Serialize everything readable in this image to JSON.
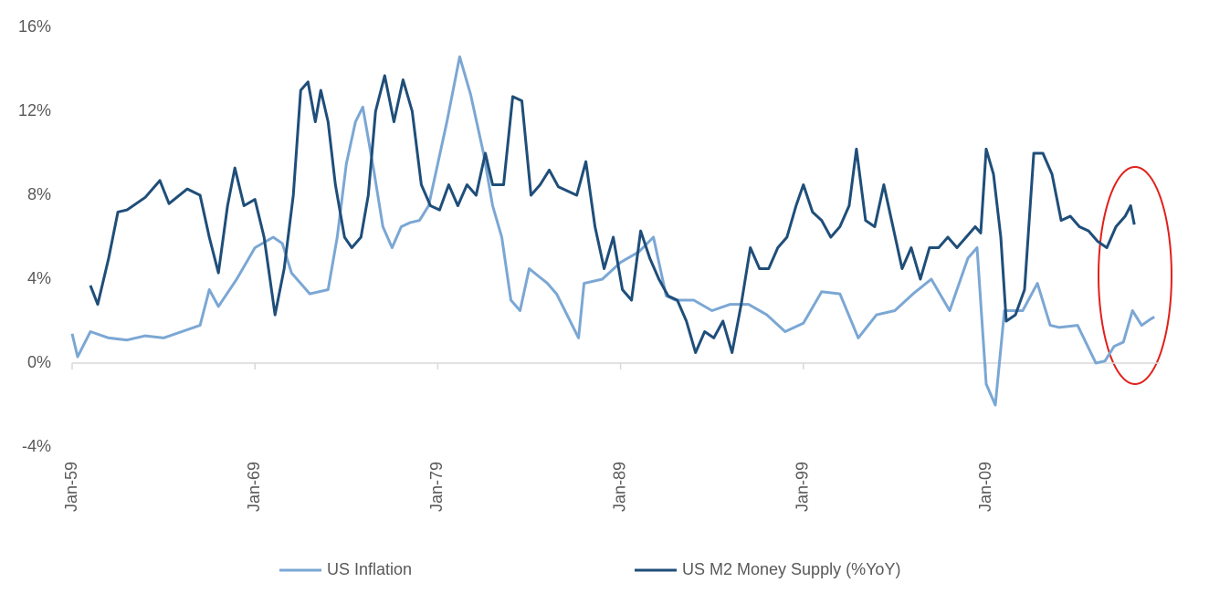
{
  "chart_data": {
    "type": "line",
    "xlim": [
      1959,
      2018.5
    ],
    "xticks": [
      {
        "value": 1959,
        "label": "Jan-59"
      },
      {
        "value": 1969,
        "label": "Jan-69"
      },
      {
        "value": 1979,
        "label": "Jan-79"
      },
      {
        "value": 1989,
        "label": "Jan-89"
      },
      {
        "value": 1999,
        "label": "Jan-99"
      },
      {
        "value": 2009,
        "label": "Jan-09"
      }
    ],
    "ylim": [
      -4,
      16
    ],
    "yticks": [
      {
        "value": -4,
        "label": "-4%"
      },
      {
        "value": 0,
        "label": "0%"
      },
      {
        "value": 4,
        "label": "4%"
      },
      {
        "value": 8,
        "label": "8%"
      },
      {
        "value": 12,
        "label": "12%"
      },
      {
        "value": 16,
        "label": "16%"
      }
    ],
    "grid": false,
    "legend": "bottom",
    "series": [
      {
        "name": "US Inflation",
        "color": "#7ba7d4",
        "x": [
          1959.0,
          1959.3,
          1960.0,
          1961.0,
          1962.0,
          1963.0,
          1964.0,
          1965.0,
          1966.0,
          1966.5,
          1967.0,
          1968.0,
          1969.0,
          1970.0,
          1970.5,
          1971.0,
          1972.0,
          1973.0,
          1973.5,
          1974.0,
          1974.5,
          1974.9,
          1975.5,
          1976.0,
          1976.5,
          1977.0,
          1977.5,
          1978.0,
          1978.5,
          1979.0,
          1979.5,
          1980.2,
          1980.8,
          1981.5,
          1982.0,
          1982.5,
          1983.0,
          1983.5,
          1984.0,
          1985.0,
          1985.5,
          1986.7,
          1987.0,
          1988.0,
          1989.0,
          1990.0,
          1990.8,
          1991.5,
          1992.0,
          1993.0,
          1994.0,
          1995.0,
          1996.0,
          1997.0,
          1998.0,
          1999.0,
          2000.0,
          2001.0,
          2002.0,
          2003.0,
          2004.0,
          2005.0,
          2006.0,
          2007.0,
          2008.0,
          2008.5,
          2009.0,
          2009.5,
          2010.0,
          2011.0,
          2011.8,
          2012.5,
          2013.0,
          2014.0,
          2015.0,
          2015.5,
          2016.0,
          2016.5,
          2017.0,
          2017.5,
          2018.0,
          2018.2
        ],
        "values": [
          1.4,
          0.3,
          1.5,
          1.2,
          1.1,
          1.3,
          1.2,
          1.5,
          1.8,
          3.5,
          2.7,
          4,
          5.5,
          6,
          5.7,
          4.3,
          3.3,
          3.5,
          6,
          9.5,
          11.5,
          12.2,
          9.2,
          6.5,
          5.5,
          6.5,
          6.7,
          6.8,
          7.5,
          9.5,
          11.5,
          14.6,
          12.8,
          10,
          7.5,
          6,
          3,
          2.5,
          4.5,
          3.8,
          3.3,
          1.2,
          3.8,
          4,
          4.8,
          5.3,
          6,
          3.2,
          3,
          3,
          2.5,
          2.8,
          2.8,
          2.3,
          1.5,
          1.9,
          3.4,
          3.3,
          1.2,
          2.3,
          2.5,
          3.3,
          4,
          2.5,
          5,
          5.5,
          -1,
          -2,
          2.5,
          2.5,
          3.8,
          1.8,
          1.7,
          1.8,
          0,
          0.1,
          0.8,
          1,
          2.5,
          1.8,
          2.1,
          2.2
        ]
      },
      {
        "name": "US M2 Money Supply (%YoY)",
        "color": "#1f4e79",
        "x": [
          1960.0,
          1960.4,
          1961.0,
          1961.5,
          1962.0,
          1963.0,
          1963.8,
          1964.3,
          1965.3,
          1966.0,
          1966.5,
          1967.0,
          1967.5,
          1967.9,
          1968.4,
          1969.0,
          1969.5,
          1970.1,
          1970.6,
          1971.1,
          1971.5,
          1971.9,
          1972.3,
          1972.6,
          1973.0,
          1973.4,
          1973.9,
          1974.3,
          1974.8,
          1975.2,
          1975.6,
          1976.1,
          1976.6,
          1977.1,
          1977.6,
          1978.1,
          1978.6,
          1979.1,
          1979.6,
          1980.1,
          1980.6,
          1981.1,
          1981.6,
          1982.0,
          1982.6,
          1983.1,
          1983.6,
          1984.1,
          1984.6,
          1985.1,
          1985.6,
          1986.1,
          1986.6,
          1987.1,
          1987.6,
          1988.1,
          1988.6,
          1989.1,
          1989.6,
          1990.1,
          1990.6,
          1991.1,
          1991.6,
          1992.1,
          1992.6,
          1993.1,
          1993.6,
          1994.1,
          1994.6,
          1995.1,
          1995.6,
          1996.1,
          1996.6,
          1997.1,
          1997.6,
          1998.1,
          1998.6,
          1999.0,
          1999.5,
          2000.0,
          2000.5,
          2001.0,
          2001.5,
          2001.9,
          2002.4,
          2002.9,
          2003.4,
          2003.9,
          2004.4,
          2004.9,
          2005.4,
          2005.9,
          2006.4,
          2006.9,
          2007.4,
          2007.9,
          2008.4,
          2008.7,
          2009.0,
          2009.4,
          2009.8,
          2010.1,
          2010.6,
          2011.1,
          2011.6,
          2012.1,
          2012.6,
          2013.1,
          2013.6,
          2014.1,
          2014.6,
          2015.1,
          2015.6,
          2016.1,
          2016.6,
          2016.9,
          2017.1
        ],
        "values": [
          3.7,
          2.8,
          5,
          7.2,
          7.3,
          7.9,
          8.7,
          7.6,
          8.3,
          8,
          6,
          4.3,
          7.5,
          9.3,
          7.5,
          7.8,
          6,
          2.3,
          4.5,
          8,
          13,
          13.4,
          11.5,
          13,
          11.5,
          8.5,
          6,
          5.5,
          6,
          8,
          12,
          13.7,
          11.5,
          13.5,
          12,
          8.5,
          7.5,
          7.3,
          8.5,
          7.5,
          8.5,
          8,
          10,
          8.5,
          8.5,
          12.7,
          12.5,
          8,
          8.5,
          9.2,
          8.4,
          8.2,
          8,
          9.6,
          6.5,
          4.5,
          6,
          3.5,
          3,
          6.3,
          5,
          4,
          3.2,
          3,
          2,
          0.5,
          1.5,
          1.2,
          2,
          0.5,
          2.8,
          5.5,
          4.5,
          4.5,
          5.5,
          6,
          7.5,
          8.5,
          7.2,
          6.8,
          6,
          6.5,
          7.5,
          10.2,
          6.8,
          6.5,
          8.5,
          6.5,
          4.5,
          5.5,
          4,
          5.5,
          5.5,
          6,
          5.5,
          6,
          6.5,
          6.2,
          10.2,
          9,
          6,
          2,
          2.3,
          3.5,
          10,
          10,
          9,
          6.8,
          7,
          6.5,
          6.3,
          5.8,
          5.5,
          6.5,
          7,
          7.5,
          6.6
        ]
      }
    ]
  }
}
